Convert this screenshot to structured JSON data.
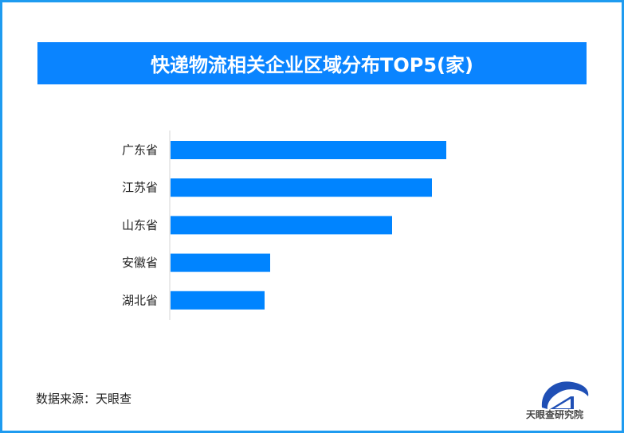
{
  "chart_data": {
    "type": "bar",
    "orientation": "horizontal",
    "title": "快递物流相关企业区域分布TOP5(家)",
    "categories": [
      "广东省",
      "江苏省",
      "山东省",
      "安徽省",
      "湖北省"
    ],
    "values": [
      346,
      328,
      278,
      125,
      118
    ],
    "xlim": [
      0,
      440
    ],
    "grid": false,
    "bar_color": "#0084ff"
  },
  "footer": {
    "source": "数据来源：天眼查",
    "logo_text": "天眼查研究院"
  }
}
